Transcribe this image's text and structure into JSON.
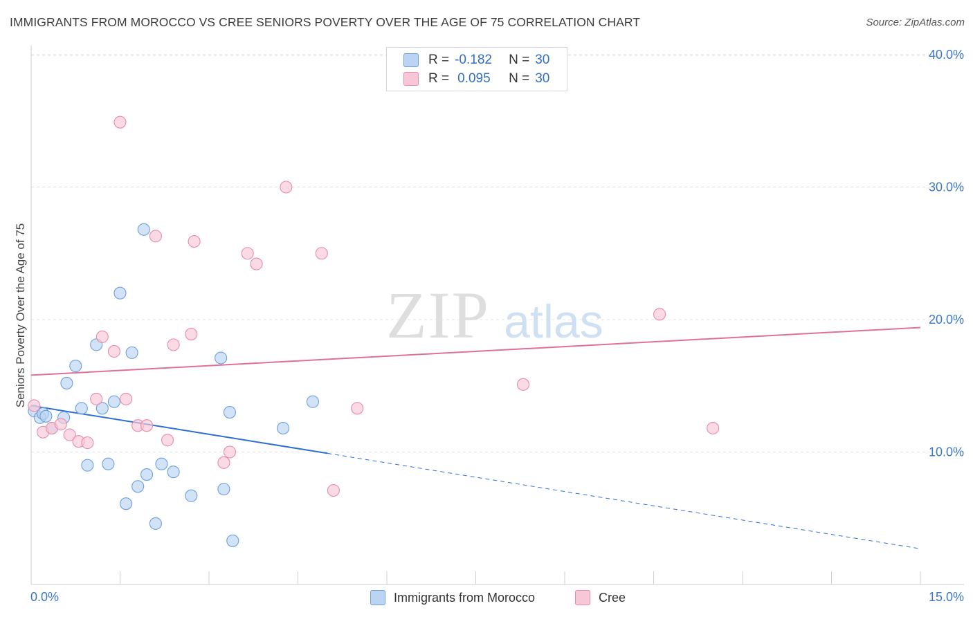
{
  "chart_data": {
    "type": "scatter",
    "title": "IMMIGRANTS FROM MOROCCO VS CREE SENIORS POVERTY OVER THE AGE OF 75 CORRELATION CHART",
    "source": "Source: ZipAtlas.com",
    "watermark": {
      "zip": "ZIP",
      "atlas": "atlas"
    },
    "xlabel": "",
    "ylabel": "Seniors Poverty Over the Age of 75",
    "xlim": [
      0,
      15
    ],
    "ylim": [
      0,
      42
    ],
    "x_tick_labels": {
      "left": "0.0%",
      "right": "15.0%"
    },
    "y_ticks": [
      {
        "value": 10,
        "label": "10.0%"
      },
      {
        "value": 20,
        "label": "20.0%"
      },
      {
        "value": 30,
        "label": "30.0%"
      },
      {
        "value": 40,
        "label": "40.0%"
      }
    ],
    "grid": true,
    "legend_position": "top-center",
    "series": [
      {
        "name": "Immigrants from Morocco",
        "color": "#6a9fe0",
        "fill": "#bcd4f3",
        "line_color": "#2e6fd3",
        "R": "-0.182",
        "N": "30",
        "trend": {
          "x0": 0,
          "y0": 13.5,
          "x1": 15,
          "y1": 2.7,
          "solid_until_x": 5
        },
        "points": [
          [
            0.05,
            13.1
          ],
          [
            0.15,
            12.6
          ],
          [
            0.2,
            12.9
          ],
          [
            0.25,
            12.7
          ],
          [
            0.35,
            11.8
          ],
          [
            0.55,
            12.6
          ],
          [
            0.6,
            15.2
          ],
          [
            0.75,
            16.5
          ],
          [
            0.85,
            13.3
          ],
          [
            0.95,
            9.0
          ],
          [
            1.1,
            18.1
          ],
          [
            1.2,
            13.3
          ],
          [
            1.3,
            9.1
          ],
          [
            1.4,
            13.8
          ],
          [
            1.5,
            22.0
          ],
          [
            1.6,
            6.1
          ],
          [
            1.7,
            17.5
          ],
          [
            1.8,
            7.4
          ],
          [
            1.9,
            26.8
          ],
          [
            1.95,
            8.3
          ],
          [
            2.1,
            4.6
          ],
          [
            2.2,
            9.1
          ],
          [
            2.4,
            8.5
          ],
          [
            2.7,
            6.7
          ],
          [
            3.2,
            17.1
          ],
          [
            3.25,
            7.2
          ],
          [
            3.4,
            3.3
          ],
          [
            3.35,
            13.0
          ],
          [
            4.25,
            11.8
          ],
          [
            4.75,
            13.8
          ]
        ]
      },
      {
        "name": "Cree",
        "color": "#e98aa8",
        "fill": "#f7c7d7",
        "line_color": "#e0709a",
        "R": "0.095",
        "N": "30",
        "trend": {
          "x0": 0,
          "y0": 15.8,
          "x1": 15,
          "y1": 19.4
        },
        "points": [
          [
            0.05,
            13.5
          ],
          [
            0.2,
            11.5
          ],
          [
            0.35,
            11.8
          ],
          [
            0.5,
            12.1
          ],
          [
            0.65,
            11.3
          ],
          [
            0.8,
            10.8
          ],
          [
            0.95,
            10.7
          ],
          [
            1.1,
            14.0
          ],
          [
            1.2,
            18.7
          ],
          [
            1.4,
            17.6
          ],
          [
            1.5,
            34.9
          ],
          [
            1.6,
            14.0
          ],
          [
            1.8,
            12.0
          ],
          [
            1.95,
            12.0
          ],
          [
            2.1,
            26.3
          ],
          [
            2.3,
            10.9
          ],
          [
            2.4,
            18.1
          ],
          [
            2.7,
            18.9
          ],
          [
            2.75,
            25.9
          ],
          [
            3.25,
            9.2
          ],
          [
            3.35,
            10.0
          ],
          [
            3.65,
            25.0
          ],
          [
            3.8,
            24.2
          ],
          [
            4.3,
            30.0
          ],
          [
            4.9,
            25.0
          ],
          [
            5.1,
            7.1
          ],
          [
            5.5,
            13.3
          ],
          [
            8.3,
            15.1
          ],
          [
            10.6,
            20.4
          ],
          [
            11.5,
            11.8
          ]
        ]
      }
    ]
  },
  "legend": {
    "r_label": "R =",
    "n_label": "N =",
    "rows": [
      {
        "r": "-0.182",
        "n": "30"
      },
      {
        "r": "0.095",
        "n": "30"
      }
    ]
  },
  "bottom_legend": {
    "items": [
      {
        "label": "Immigrants from Morocco"
      },
      {
        "label": "Cree"
      }
    ]
  }
}
